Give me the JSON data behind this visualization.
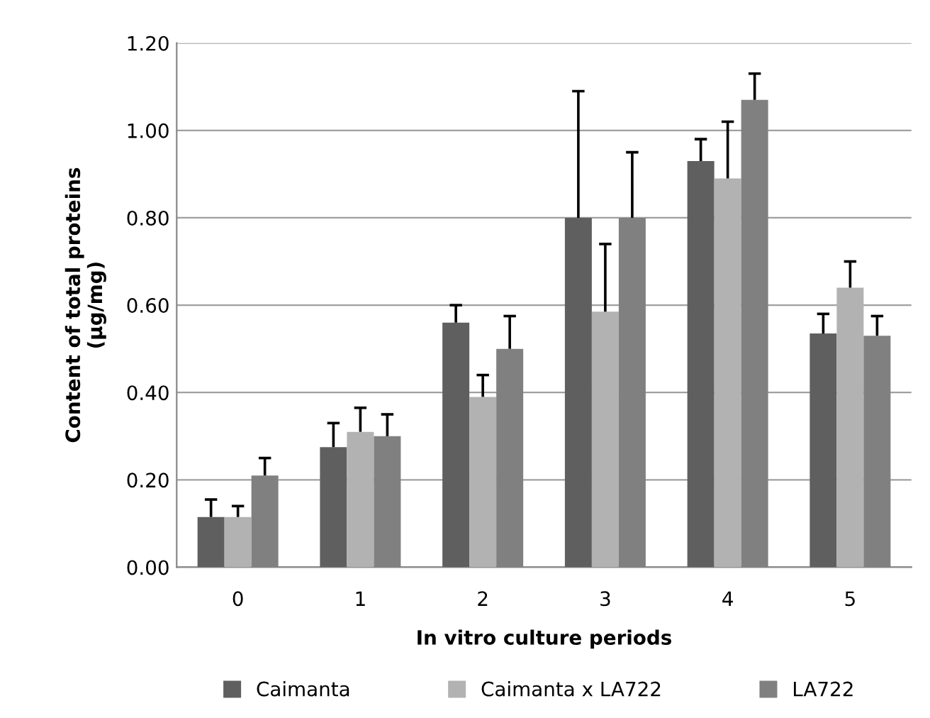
{
  "chart_data": {
    "type": "bar",
    "xlabel": "In vitro culture periods",
    "ylabel": "Content of total proteins\n(µg/mg)",
    "categories": [
      "0",
      "1",
      "2",
      "3",
      "4",
      "5"
    ],
    "series": [
      {
        "name": "Caimanta",
        "color": "#5f5f5f",
        "values": [
          0.115,
          0.275,
          0.56,
          0.8,
          0.93,
          0.535
        ],
        "errors": [
          [
            0.115,
            0.155
          ],
          [
            0.275,
            0.33
          ],
          [
            0.56,
            0.6
          ],
          [
            0.8,
            1.09
          ],
          [
            0.93,
            0.98
          ],
          [
            0.535,
            0.58
          ]
        ]
      },
      {
        "name": "Caimanta x LA722",
        "color": "#b2b2b2",
        "values": [
          0.115,
          0.31,
          0.39,
          0.585,
          0.89,
          0.64
        ],
        "errors": [
          [
            0.115,
            0.14
          ],
          [
            0.31,
            0.365
          ],
          [
            0.39,
            0.44
          ],
          [
            0.585,
            0.74
          ],
          [
            0.89,
            1.02
          ],
          [
            0.64,
            0.7
          ]
        ]
      },
      {
        "name": "LA722",
        "color": "#808080",
        "values": [
          0.21,
          0.3,
          0.5,
          0.8,
          1.07,
          0.53
        ],
        "errors": [
          [
            0.21,
            0.25
          ],
          [
            0.3,
            0.35
          ],
          [
            0.5,
            0.575
          ],
          [
            0.8,
            0.95
          ],
          [
            1.07,
            1.13
          ],
          [
            0.53,
            0.575
          ]
        ]
      }
    ],
    "ylim": [
      0,
      1.2
    ],
    "yticks": [
      {
        "value": 0,
        "label": "0.00"
      },
      {
        "value": 0.2,
        "label": "0.20"
      },
      {
        "value": 0.4,
        "label": "0.40"
      },
      {
        "value": 0.6,
        "label": "0.60"
      },
      {
        "value": 0.8,
        "label": "0.80"
      },
      {
        "value": 1.0,
        "label": "1.00"
      },
      {
        "value": 1.2,
        "label": "1.20"
      }
    ],
    "grid": "y",
    "legend": "bottom"
  }
}
